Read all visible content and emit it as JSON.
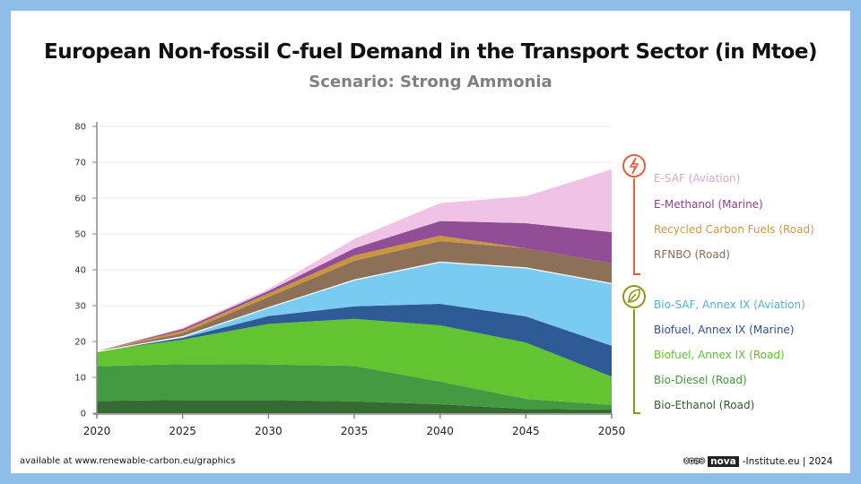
{
  "chart_data": {
    "type": "area",
    "stacked": true,
    "title": "European Non-fossil C-fuel Demand in the Transport Sector (in Mtoe)",
    "subtitle": "Scenario: Strong Ammonia",
    "x": [
      2020,
      2025,
      2030,
      2035,
      2040,
      2045,
      2050
    ],
    "xlim": [
      2020,
      2050
    ],
    "ylim": [
      0,
      80
    ],
    "yticks": [
      0,
      10,
      20,
      30,
      40,
      50,
      60,
      70,
      80
    ],
    "grid": true,
    "legend_placement": "right",
    "series": [
      {
        "name": "Bio-Ethanol (Road)",
        "color": "#356b30",
        "values": [
          3.4,
          3.7,
          3.7,
          3.3,
          2.5,
          1.2,
          1.0
        ]
      },
      {
        "name": "Bio-Diesel (Road)",
        "color": "#449a41",
        "values": [
          9.7,
          10.0,
          9.9,
          9.9,
          6.3,
          2.8,
          1.3
        ]
      },
      {
        "name": "Biofuel, Annex IX (Road)",
        "color": "#62c431",
        "values": [
          4.2,
          6.8,
          11.3,
          13.1,
          15.7,
          15.7,
          7.9
        ]
      },
      {
        "name": "Biofuel, Annex IX (Marine)",
        "color": "#2e5a96",
        "values": [
          0,
          0.5,
          2.2,
          3.5,
          6.0,
          7.3,
          8.6
        ]
      },
      {
        "name": "Bio-SAF, Annex IX (Aviation)",
        "color": "#7acbf1",
        "values": [
          0,
          0.5,
          2.5,
          7.5,
          11.8,
          13.7,
          17.5
        ]
      },
      {
        "name": "RFNBO (Road)",
        "color": "#8c7057",
        "values": [
          0,
          0.8,
          2.8,
          5.2,
          5.7,
          5.3,
          5.5
        ]
      },
      {
        "name": "Recycled Carbon Fuels (Road)",
        "color": "#c9963c",
        "values": [
          0,
          0.7,
          1.0,
          1.5,
          1.5,
          0,
          0
        ]
      },
      {
        "name": "E-Methanol (Marine)",
        "color": "#914e97",
        "values": [
          0,
          0.5,
          0.7,
          2.0,
          4.1,
          7.0,
          8.7
        ]
      },
      {
        "name": "E-SAF (Aviation)",
        "color": "#f0c2e5",
        "values": [
          0,
          0.3,
          0.5,
          2.6,
          5.0,
          7.5,
          17.5
        ]
      }
    ],
    "legend_groups": [
      {
        "icon": "lightning-icon",
        "color": "#e0603a",
        "items": [
          "E-SAF (Aviation)",
          "E-Methanol (Marine)",
          "Recycled Carbon Fuels (Road)",
          "RFNBO (Road)"
        ]
      },
      {
        "icon": "leaf-icon",
        "color": "#8a9a18",
        "items": [
          "Bio-SAF, Annex IX (Aviation)",
          "Biofuel, Annex IX (Marine)",
          "Biofuel, Annex IX (Road)",
          "Bio-Diesel (Road)",
          "Bio-Ethanol (Road)"
        ]
      }
    ]
  },
  "legend_text_colors": [
    "#d9a9cc",
    "#8c3f93",
    "#d09a45",
    "#8a6b55",
    "#57acd6",
    "#2e4f90",
    "#5cc42a",
    "#3f9a3d",
    "#2f5e2a"
  ],
  "footer": {
    "source": "available at www.renewable-carbon.eu/graphics",
    "license_icons": "🅭🅯🄏🄎",
    "brand": "nova",
    "brand_suffix": "-Institute.eu | 2024"
  }
}
